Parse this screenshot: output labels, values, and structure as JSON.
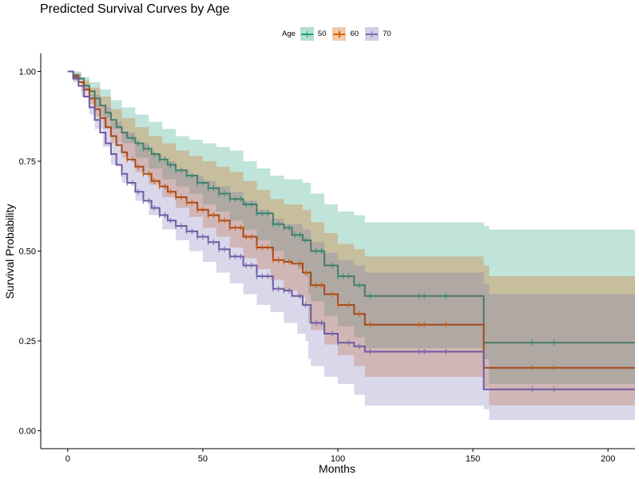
{
  "chart_data": {
    "type": "line",
    "title": "Predicted Survival Curves by Age",
    "xlabel": "Months",
    "ylabel": "Survival Probability",
    "xlim": [
      -10,
      210
    ],
    "ylim": [
      -0.05,
      1.05
    ],
    "xticks": [
      0,
      50,
      100,
      150,
      200
    ],
    "yticks": [
      0.0,
      0.25,
      0.5,
      0.75,
      1.0
    ],
    "ytick_labels": [
      "0.00",
      "0.25",
      "0.50",
      "0.75",
      "1.00"
    ],
    "legend": {
      "title": "Age",
      "position": "top"
    },
    "series": [
      {
        "name": "50",
        "color": "#1b9e77",
        "line_color": "#4a7a6a",
        "fill": "#1b9e77",
        "steps": [
          [
            0,
            1.0
          ],
          [
            2,
            0.99
          ],
          [
            4,
            0.98
          ],
          [
            6,
            0.96
          ],
          [
            8,
            0.945
          ],
          [
            10,
            0.925
          ],
          [
            12,
            0.905
          ],
          [
            14,
            0.885
          ],
          [
            16,
            0.865
          ],
          [
            18,
            0.845
          ],
          [
            20,
            0.83
          ],
          [
            22,
            0.815
          ],
          [
            25,
            0.8
          ],
          [
            28,
            0.785
          ],
          [
            31,
            0.77
          ],
          [
            34,
            0.755
          ],
          [
            37,
            0.74
          ],
          [
            40,
            0.725
          ],
          [
            44,
            0.71
          ],
          [
            48,
            0.69
          ],
          [
            52,
            0.675
          ],
          [
            56,
            0.66
          ],
          [
            60,
            0.645
          ],
          [
            65,
            0.63
          ],
          [
            70,
            0.605
          ],
          [
            76,
            0.575
          ],
          [
            80,
            0.565
          ],
          [
            83,
            0.545
          ],
          [
            87,
            0.53
          ],
          [
            90,
            0.5
          ],
          [
            95,
            0.46
          ],
          [
            100,
            0.43
          ],
          [
            106,
            0.405
          ],
          [
            110,
            0.375
          ],
          [
            154,
            0.245
          ],
          [
            210,
            0.245
          ]
        ],
        "lower": [
          [
            0,
            1.0
          ],
          [
            2,
            0.98
          ],
          [
            5,
            0.96
          ],
          [
            8,
            0.93
          ],
          [
            10,
            0.9
          ],
          [
            13,
            0.87
          ],
          [
            16,
            0.84
          ],
          [
            20,
            0.8
          ],
          [
            25,
            0.76
          ],
          [
            30,
            0.73
          ],
          [
            35,
            0.7
          ],
          [
            40,
            0.68
          ],
          [
            45,
            0.66
          ],
          [
            50,
            0.63
          ],
          [
            55,
            0.61
          ],
          [
            60,
            0.585
          ],
          [
            65,
            0.56
          ],
          [
            70,
            0.53
          ],
          [
            75,
            0.5
          ],
          [
            80,
            0.47
          ],
          [
            85,
            0.45
          ],
          [
            88,
            0.43
          ],
          [
            89,
            0.38
          ],
          [
            90,
            0.36
          ],
          [
            95,
            0.32
          ],
          [
            100,
            0.29
          ],
          [
            106,
            0.26
          ],
          [
            110,
            0.23
          ],
          [
            154,
            0.2
          ],
          [
            156,
            0.13
          ],
          [
            210,
            0.13
          ]
        ],
        "upper": [
          [
            0,
            1.0
          ],
          [
            2,
            1.0
          ],
          [
            5,
            0.985
          ],
          [
            8,
            0.97
          ],
          [
            12,
            0.95
          ],
          [
            16,
            0.92
          ],
          [
            20,
            0.9
          ],
          [
            25,
            0.88
          ],
          [
            30,
            0.86
          ],
          [
            35,
            0.84
          ],
          [
            40,
            0.82
          ],
          [
            45,
            0.81
          ],
          [
            50,
            0.8
          ],
          [
            55,
            0.79
          ],
          [
            60,
            0.78
          ],
          [
            65,
            0.75
          ],
          [
            70,
            0.73
          ],
          [
            75,
            0.71
          ],
          [
            80,
            0.7
          ],
          [
            87,
            0.69
          ],
          [
            90,
            0.66
          ],
          [
            95,
            0.63
          ],
          [
            100,
            0.61
          ],
          [
            106,
            0.6
          ],
          [
            110,
            0.58
          ],
          [
            154,
            0.57
          ],
          [
            156,
            0.56
          ],
          [
            210,
            0.56
          ]
        ],
        "censor_x": [
          24,
          26,
          28,
          30,
          32,
          34,
          36,
          38,
          40,
          42,
          44,
          46,
          48,
          50,
          52,
          54,
          56,
          58,
          60,
          62,
          64,
          66,
          68,
          70,
          72,
          74,
          76,
          78,
          80,
          82,
          84,
          86,
          88,
          92,
          94,
          98,
          100,
          102,
          104,
          108,
          112,
          130,
          132,
          140,
          172,
          180
        ]
      },
      {
        "name": "60",
        "color": "#d95f02",
        "line_color": "#a34a1a",
        "fill": "#d95f02",
        "steps": [
          [
            0,
            1.0
          ],
          [
            2,
            0.985
          ],
          [
            4,
            0.97
          ],
          [
            6,
            0.95
          ],
          [
            8,
            0.925
          ],
          [
            10,
            0.895
          ],
          [
            12,
            0.87
          ],
          [
            14,
            0.845
          ],
          [
            16,
            0.82
          ],
          [
            18,
            0.795
          ],
          [
            20,
            0.775
          ],
          [
            22,
            0.755
          ],
          [
            25,
            0.735
          ],
          [
            28,
            0.715
          ],
          [
            31,
            0.695
          ],
          [
            34,
            0.68
          ],
          [
            37,
            0.665
          ],
          [
            40,
            0.65
          ],
          [
            44,
            0.635
          ],
          [
            48,
            0.615
          ],
          [
            52,
            0.6
          ],
          [
            56,
            0.585
          ],
          [
            60,
            0.565
          ],
          [
            65,
            0.54
          ],
          [
            70,
            0.51
          ],
          [
            76,
            0.475
          ],
          [
            80,
            0.47
          ],
          [
            83,
            0.465
          ],
          [
            87,
            0.44
          ],
          [
            90,
            0.405
          ],
          [
            95,
            0.38
          ],
          [
            100,
            0.35
          ],
          [
            106,
            0.325
          ],
          [
            110,
            0.295
          ],
          [
            154,
            0.175
          ],
          [
            210,
            0.175
          ]
        ],
        "lower": [
          [
            0,
            1.0
          ],
          [
            2,
            0.975
          ],
          [
            5,
            0.945
          ],
          [
            8,
            0.91
          ],
          [
            10,
            0.875
          ],
          [
            13,
            0.84
          ],
          [
            16,
            0.8
          ],
          [
            20,
            0.76
          ],
          [
            25,
            0.72
          ],
          [
            30,
            0.685
          ],
          [
            35,
            0.65
          ],
          [
            40,
            0.62
          ],
          [
            45,
            0.595
          ],
          [
            50,
            0.565
          ],
          [
            55,
            0.54
          ],
          [
            60,
            0.51
          ],
          [
            65,
            0.48
          ],
          [
            70,
            0.45
          ],
          [
            75,
            0.42
          ],
          [
            80,
            0.39
          ],
          [
            85,
            0.37
          ],
          [
            88,
            0.35
          ],
          [
            89,
            0.3
          ],
          [
            90,
            0.28
          ],
          [
            95,
            0.24
          ],
          [
            100,
            0.21
          ],
          [
            106,
            0.18
          ],
          [
            110,
            0.15
          ],
          [
            154,
            0.12
          ],
          [
            156,
            0.07
          ],
          [
            210,
            0.06
          ]
        ],
        "upper": [
          [
            0,
            1.0
          ],
          [
            2,
            0.995
          ],
          [
            5,
            0.975
          ],
          [
            8,
            0.955
          ],
          [
            12,
            0.93
          ],
          [
            16,
            0.895
          ],
          [
            20,
            0.87
          ],
          [
            25,
            0.845
          ],
          [
            30,
            0.82
          ],
          [
            35,
            0.8
          ],
          [
            40,
            0.78
          ],
          [
            45,
            0.765
          ],
          [
            50,
            0.75
          ],
          [
            55,
            0.735
          ],
          [
            60,
            0.72
          ],
          [
            65,
            0.695
          ],
          [
            70,
            0.67
          ],
          [
            75,
            0.645
          ],
          [
            80,
            0.63
          ],
          [
            87,
            0.615
          ],
          [
            90,
            0.58
          ],
          [
            95,
            0.55
          ],
          [
            100,
            0.52
          ],
          [
            106,
            0.505
          ],
          [
            110,
            0.485
          ],
          [
            154,
            0.46
          ],
          [
            156,
            0.43
          ],
          [
            210,
            0.42
          ]
        ],
        "censor_x": [
          22,
          24,
          26,
          28,
          30,
          32,
          34,
          36,
          38,
          40,
          42,
          44,
          46,
          48,
          50,
          52,
          54,
          56,
          58,
          60,
          62,
          64,
          66,
          68,
          70,
          72,
          74,
          76,
          78,
          80,
          82,
          86,
          88,
          92,
          94,
          98,
          100,
          104,
          108,
          112,
          130,
          132,
          140,
          172,
          180
        ]
      },
      {
        "name": "70",
        "color": "#7570b3",
        "line_color": "#6e5ba0",
        "fill": "#7570b3",
        "steps": [
          [
            0,
            1.0
          ],
          [
            2,
            0.98
          ],
          [
            4,
            0.96
          ],
          [
            6,
            0.93
          ],
          [
            8,
            0.9
          ],
          [
            10,
            0.865
          ],
          [
            12,
            0.83
          ],
          [
            14,
            0.8
          ],
          [
            16,
            0.77
          ],
          [
            18,
            0.74
          ],
          [
            20,
            0.715
          ],
          [
            22,
            0.69
          ],
          [
            25,
            0.665
          ],
          [
            28,
            0.64
          ],
          [
            31,
            0.62
          ],
          [
            34,
            0.6
          ],
          [
            37,
            0.585
          ],
          [
            40,
            0.57
          ],
          [
            44,
            0.555
          ],
          [
            48,
            0.54
          ],
          [
            52,
            0.525
          ],
          [
            56,
            0.505
          ],
          [
            60,
            0.485
          ],
          [
            65,
            0.46
          ],
          [
            70,
            0.43
          ],
          [
            76,
            0.395
          ],
          [
            80,
            0.39
          ],
          [
            83,
            0.375
          ],
          [
            87,
            0.35
          ],
          [
            90,
            0.3
          ],
          [
            95,
            0.27
          ],
          [
            100,
            0.245
          ],
          [
            106,
            0.235
          ],
          [
            110,
            0.22
          ],
          [
            154,
            0.115
          ],
          [
            210,
            0.115
          ]
        ],
        "lower": [
          [
            0,
            1.0
          ],
          [
            2,
            0.97
          ],
          [
            5,
            0.93
          ],
          [
            8,
            0.88
          ],
          [
            10,
            0.84
          ],
          [
            13,
            0.79
          ],
          [
            16,
            0.74
          ],
          [
            20,
            0.69
          ],
          [
            25,
            0.64
          ],
          [
            30,
            0.6
          ],
          [
            35,
            0.56
          ],
          [
            40,
            0.53
          ],
          [
            45,
            0.5
          ],
          [
            50,
            0.47
          ],
          [
            55,
            0.44
          ],
          [
            60,
            0.41
          ],
          [
            65,
            0.38
          ],
          [
            70,
            0.35
          ],
          [
            75,
            0.33
          ],
          [
            80,
            0.3
          ],
          [
            85,
            0.27
          ],
          [
            88,
            0.25
          ],
          [
            89,
            0.2
          ],
          [
            90,
            0.18
          ],
          [
            95,
            0.15
          ],
          [
            100,
            0.13
          ],
          [
            106,
            0.1
          ],
          [
            110,
            0.07
          ],
          [
            154,
            0.06
          ],
          [
            156,
            0.03
          ],
          [
            210,
            0.03
          ]
        ],
        "upper": [
          [
            0,
            1.0
          ],
          [
            2,
            0.99
          ],
          [
            5,
            0.965
          ],
          [
            8,
            0.935
          ],
          [
            12,
            0.9
          ],
          [
            16,
            0.86
          ],
          [
            20,
            0.83
          ],
          [
            25,
            0.8
          ],
          [
            30,
            0.77
          ],
          [
            35,
            0.75
          ],
          [
            40,
            0.725
          ],
          [
            45,
            0.71
          ],
          [
            50,
            0.695
          ],
          [
            55,
            0.68
          ],
          [
            60,
            0.665
          ],
          [
            65,
            0.64
          ],
          [
            70,
            0.615
          ],
          [
            75,
            0.59
          ],
          [
            80,
            0.575
          ],
          [
            87,
            0.56
          ],
          [
            90,
            0.525
          ],
          [
            95,
            0.495
          ],
          [
            100,
            0.475
          ],
          [
            106,
            0.46
          ],
          [
            110,
            0.44
          ],
          [
            154,
            0.41
          ],
          [
            156,
            0.38
          ],
          [
            210,
            0.38
          ]
        ],
        "censor_x": [
          20,
          22,
          24,
          26,
          28,
          30,
          32,
          34,
          36,
          38,
          40,
          42,
          44,
          46,
          48,
          50,
          52,
          54,
          56,
          58,
          60,
          62,
          64,
          66,
          68,
          70,
          72,
          74,
          76,
          78,
          80,
          82,
          86,
          88,
          92,
          94,
          98,
          100,
          104,
          108,
          112,
          130,
          132,
          140,
          172,
          180
        ]
      }
    ]
  }
}
